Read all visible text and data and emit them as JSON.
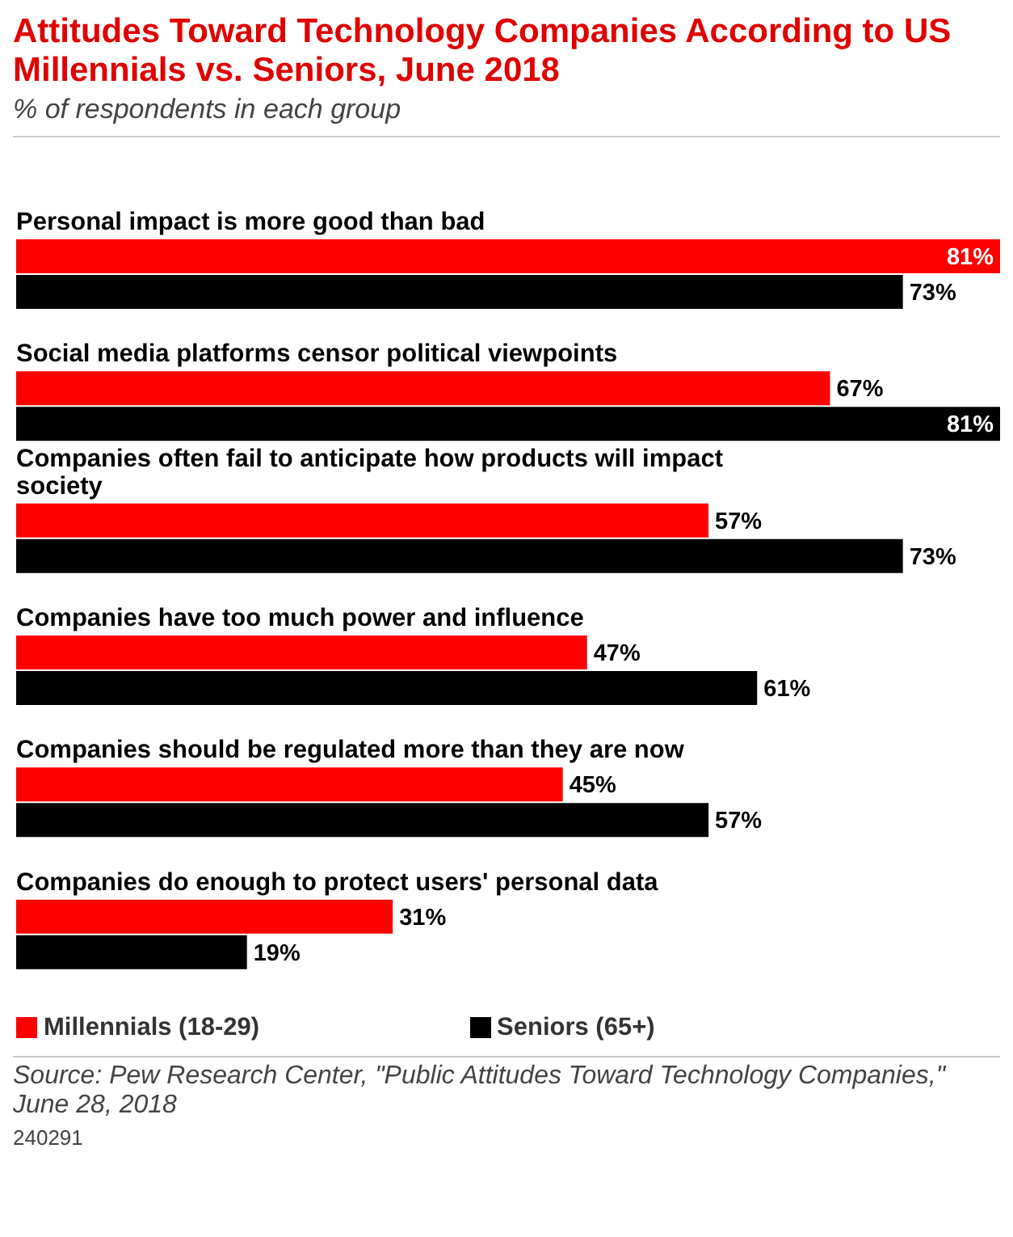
{
  "chart_data": {
    "type": "bar",
    "orientation": "horizontal",
    "title": "Attitudes Toward Technology Companies According to US Millennials vs. Seniors, June 2018",
    "subtitle": "% of respondents in each group",
    "categories": [
      "Personal impact is more good than bad",
      "Social media platforms censor political viewpoints",
      "Companies often fail to anticipate how products will impact society",
      "Companies have too much power and influence",
      "Companies should be regulated more than they are now",
      "Companies do enough to protect users' personal data"
    ],
    "series": [
      {
        "name": "Millennials (18-29)",
        "color": "#ff0000",
        "values": [
          81,
          67,
          57,
          47,
          45,
          31
        ],
        "value_labels": [
          "81%",
          "67%",
          "57%",
          "47%",
          "45%",
          "31%"
        ]
      },
      {
        "name": "Seniors (65+)",
        "color": "#000000",
        "values": [
          73,
          81,
          73,
          61,
          57,
          19
        ],
        "value_labels": [
          "73%",
          "81%",
          "73%",
          "61%",
          "57%",
          "19%"
        ]
      }
    ],
    "legend": "bottom left",
    "annotations": [
      "Source: Pew Research Center, \"Public Attitudes Toward Technology Companies,\" June 28, 2018",
      "240291"
    ]
  }
}
